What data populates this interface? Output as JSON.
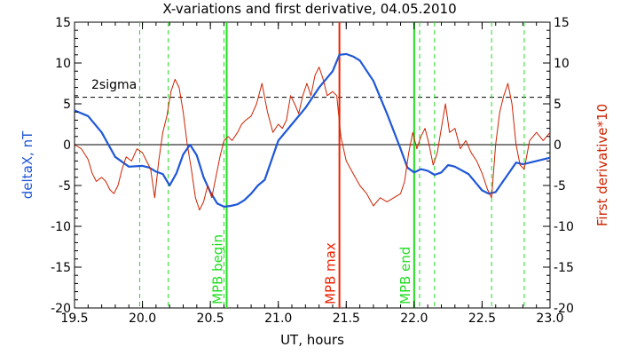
{
  "chart_data": {
    "type": "line",
    "title": "X-variations and first derivative, 04.05.2010",
    "xlabel": "UT, hours",
    "ylabel_left": "deltaX, nT",
    "ylabel_right": "First derivative*10",
    "xlim": [
      19.5,
      23.0
    ],
    "ylim_left": [
      -20,
      15
    ],
    "ylim_right": [
      -20,
      15
    ],
    "x_ticks": [
      "19.5",
      "20.0",
      "20.5",
      "21.0",
      "21.5",
      "22.0",
      "22.5",
      "23.0"
    ],
    "y_ticks_left": [
      "-20",
      "-15",
      "-10",
      "-5",
      "0",
      "5",
      "10",
      "15"
    ],
    "y_ticks_right": [
      "-20",
      "-15",
      "-10",
      "-5",
      "0",
      "5",
      "10",
      "15"
    ],
    "grid": false,
    "colors": {
      "deltaX": "#1f57d6",
      "derivative": "#cc2200",
      "mpb_boundary": "#22dd22",
      "mpb_max": "#ee2200",
      "dashed_event": "#22dd22",
      "sigma_line": "#000000",
      "zero_line": "#000000"
    },
    "sigma_level": 5.8,
    "sigma_label": "2sigma",
    "zero_level": 0,
    "vertical_markers": [
      {
        "x": 20.62,
        "label": "MPB begin",
        "color": "#22dd22"
      },
      {
        "x": 21.45,
        "label": "MPB max",
        "color": "#ee2200"
      },
      {
        "x": 22.0,
        "label": "MPB end",
        "color": "#22dd22"
      }
    ],
    "dashed_markers": [
      19.98,
      20.19,
      20.6,
      22.04,
      22.15,
      22.57,
      22.81
    ],
    "series": [
      {
        "key": "deltaX",
        "axis": "left",
        "x": [
          19.5,
          19.6,
          19.7,
          19.8,
          19.9,
          20.0,
          20.05,
          20.1,
          20.15,
          20.2,
          20.25,
          20.3,
          20.35,
          20.4,
          20.45,
          20.5,
          20.55,
          20.6,
          20.65,
          20.7,
          20.75,
          20.8,
          20.85,
          20.9,
          21.0,
          21.1,
          21.2,
          21.3,
          21.4,
          21.45,
          21.5,
          21.55,
          21.6,
          21.7,
          21.8,
          21.9,
          21.95,
          22.0,
          22.05,
          22.1,
          22.15,
          22.2,
          22.25,
          22.3,
          22.4,
          22.45,
          22.5,
          22.55,
          22.6,
          22.65,
          22.7,
          22.75,
          22.8,
          22.9,
          23.0
        ],
        "y": [
          4.2,
          3.5,
          1.5,
          -1.5,
          -2.7,
          -2.6,
          -2.8,
          -3.3,
          -3.6,
          -5.0,
          -3.5,
          -1.2,
          0.0,
          -1.3,
          -4.0,
          -5.8,
          -7.2,
          -7.6,
          -7.5,
          -7.3,
          -6.8,
          -6.0,
          -5.0,
          -4.3,
          0.5,
          2.5,
          4.5,
          7.0,
          9.0,
          11.0,
          11.1,
          10.8,
          10.3,
          7.8,
          3.8,
          -0.5,
          -2.8,
          -3.4,
          -3.0,
          -3.2,
          -3.7,
          -3.4,
          -2.5,
          -2.7,
          -3.6,
          -4.6,
          -5.6,
          -6.0,
          -5.8,
          -4.6,
          -3.4,
          -2.2,
          -2.4,
          -2.0,
          -1.6
        ]
      },
      {
        "key": "derivative",
        "axis": "right",
        "x": [
          19.5,
          19.55,
          19.6,
          19.63,
          19.66,
          19.7,
          19.73,
          19.76,
          19.79,
          19.82,
          19.85,
          19.88,
          19.92,
          19.96,
          20.0,
          20.03,
          20.06,
          20.09,
          20.12,
          20.15,
          20.18,
          20.21,
          20.24,
          20.27,
          20.3,
          20.33,
          20.36,
          20.39,
          20.42,
          20.45,
          20.48,
          20.51,
          20.54,
          20.57,
          20.6,
          20.63,
          20.66,
          20.7,
          20.73,
          20.76,
          20.8,
          20.84,
          20.88,
          20.92,
          20.96,
          21.0,
          21.03,
          21.06,
          21.09,
          21.12,
          21.15,
          21.18,
          21.21,
          21.24,
          21.27,
          21.3,
          21.33,
          21.36,
          21.4,
          21.43,
          21.46,
          21.5,
          21.55,
          21.6,
          21.65,
          21.7,
          21.75,
          21.8,
          21.85,
          21.9,
          21.93,
          21.96,
          21.99,
          22.02,
          22.05,
          22.08,
          22.11,
          22.14,
          22.17,
          22.2,
          22.23,
          22.26,
          22.3,
          22.34,
          22.38,
          22.42,
          22.46,
          22.5,
          22.54,
          22.57,
          22.6,
          22.63,
          22.66,
          22.69,
          22.72,
          22.75,
          22.78,
          22.81,
          22.85,
          22.9,
          22.95,
          23.0
        ],
        "y": [
          0.0,
          -0.5,
          -1.8,
          -3.5,
          -4.5,
          -4.0,
          -4.5,
          -5.5,
          -6.0,
          -5.0,
          -3.0,
          -1.5,
          -2.0,
          -0.5,
          -1.0,
          -2.0,
          -3.0,
          -6.5,
          -2.0,
          1.5,
          3.5,
          6.5,
          8.0,
          7.0,
          4.0,
          0.0,
          -3.0,
          -6.5,
          -8.0,
          -7.0,
          -5.0,
          -6.5,
          -4.0,
          -1.5,
          0.5,
          1.0,
          0.5,
          1.5,
          2.5,
          3.0,
          3.5,
          5.0,
          7.5,
          4.0,
          1.5,
          2.5,
          2.0,
          3.0,
          6.0,
          5.0,
          3.8,
          6.0,
          7.5,
          6.0,
          8.5,
          9.5,
          8.0,
          6.0,
          6.5,
          6.0,
          1.0,
          -2.0,
          -3.5,
          -5.0,
          -6.0,
          -7.5,
          -6.5,
          -7.0,
          -6.5,
          -6.0,
          -4.5,
          -1.0,
          1.5,
          -0.5,
          1.0,
          2.0,
          0.0,
          -2.5,
          -1.0,
          2.0,
          5.0,
          1.5,
          2.0,
          -0.5,
          0.5,
          -1.0,
          -2.0,
          -3.5,
          -5.5,
          -6.5,
          0.0,
          4.0,
          6.0,
          7.5,
          5.0,
          0.0,
          -2.5,
          -3.0,
          0.5,
          1.5,
          0.5,
          1.5
        ]
      }
    ]
  }
}
